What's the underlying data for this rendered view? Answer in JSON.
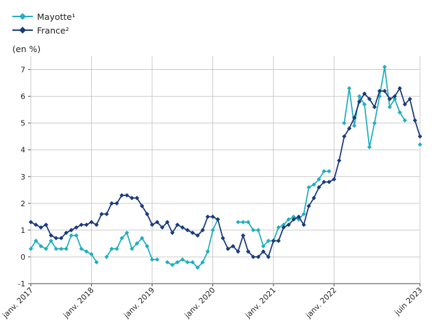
{
  "legend": {
    "items": [
      {
        "label": "Mayotte¹",
        "color": "#23AFBD"
      },
      {
        "label": "France²",
        "color": "#1B3B7A"
      }
    ]
  },
  "chart_data": {
    "type": "line",
    "ylabel": "(en  %)",
    "ylim": [
      -1,
      7.5
    ],
    "yticks": [
      -1,
      0,
      1,
      2,
      3,
      4,
      5,
      6,
      7
    ],
    "grid": true,
    "legend_position": "top-left",
    "x_start": "2017-01",
    "x_end": "2023-06",
    "xticks": [
      {
        "label": "janv. 2017",
        "date": "2017-01"
      },
      {
        "label": "janv. 2018",
        "date": "2018-01"
      },
      {
        "label": "janv. 2019",
        "date": "2019-01"
      },
      {
        "label": "janv. 2020",
        "date": "2020-01"
      },
      {
        "label": "janv. 2021",
        "date": "2021-01"
      },
      {
        "label": "janv. 2022",
        "date": "2022-01"
      },
      {
        "label": "juin 2023",
        "date": "2023-06"
      }
    ],
    "series": [
      {
        "name": "Mayotte¹",
        "color": "#23AFBD",
        "marker": "diamond",
        "values": [
          0.3,
          0.6,
          0.4,
          0.3,
          0.6,
          0.3,
          0.3,
          0.3,
          0.8,
          0.8,
          0.3,
          0.2,
          0.1,
          -0.2,
          null,
          0.0,
          0.3,
          0.3,
          0.7,
          0.9,
          0.3,
          0.5,
          0.7,
          0.4,
          -0.1,
          -0.1,
          null,
          -0.2,
          -0.3,
          -0.2,
          -0.1,
          -0.2,
          -0.2,
          -0.4,
          -0.2,
          0.2,
          1.0,
          1.4,
          null,
          null,
          null,
          1.3,
          1.3,
          1.3,
          1.0,
          1.0,
          0.4,
          0.6,
          0.6,
          1.1,
          1.2,
          1.4,
          1.5,
          1.4,
          1.6,
          2.6,
          2.7,
          2.9,
          3.2,
          3.2,
          null,
          null,
          5.0,
          6.3,
          4.9,
          6.0,
          5.7,
          4.1,
          5.0,
          6.0,
          7.1,
          5.6,
          5.9,
          5.4,
          5.1,
          null,
          null,
          4.2
        ]
      },
      {
        "name": "France²",
        "color": "#1B3B7A",
        "marker": "diamond",
        "values": [
          1.3,
          1.2,
          1.1,
          1.2,
          0.8,
          0.7,
          0.7,
          0.9,
          1.0,
          1.1,
          1.2,
          1.2,
          1.3,
          1.2,
          1.6,
          1.6,
          2.0,
          2.0,
          2.3,
          2.3,
          2.2,
          2.2,
          1.9,
          1.6,
          1.2,
          1.3,
          1.1,
          1.3,
          0.9,
          1.2,
          1.1,
          1.0,
          0.9,
          0.8,
          1.0,
          1.5,
          1.5,
          1.4,
          0.7,
          0.3,
          0.4,
          0.2,
          0.8,
          0.2,
          0.0,
          0.0,
          0.2,
          0.0,
          0.6,
          0.6,
          1.1,
          1.2,
          1.4,
          1.5,
          1.2,
          1.9,
          2.2,
          2.6,
          2.8,
          2.8,
          2.9,
          3.6,
          4.5,
          4.8,
          5.2,
          5.8,
          6.1,
          5.9,
          5.6,
          6.2,
          6.2,
          5.9,
          6.0,
          6.3,
          5.7,
          5.9,
          5.1,
          4.5
        ]
      }
    ]
  }
}
